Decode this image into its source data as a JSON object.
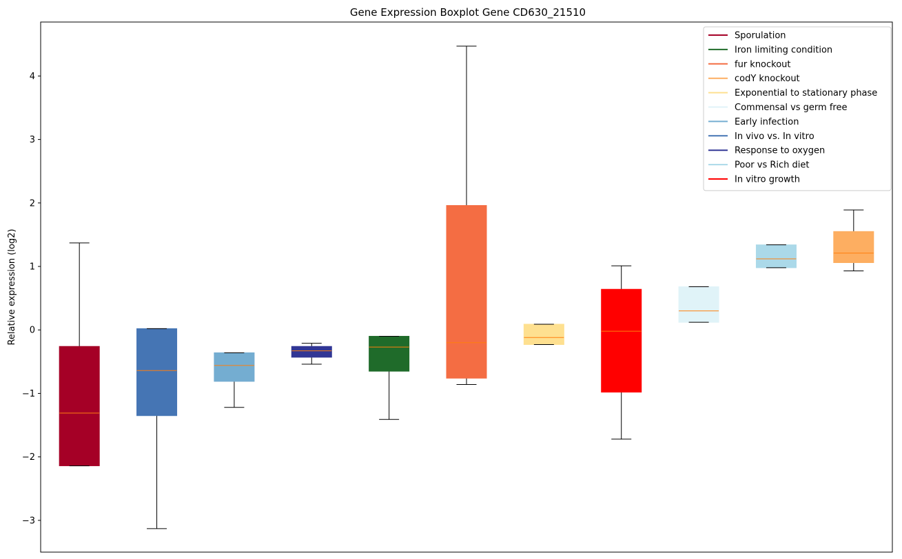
{
  "chart_data": {
    "type": "boxplot",
    "title": "Gene Expression Boxplot Gene CD630_21510",
    "xlabel": "",
    "ylabel": "Relative expression (log2)",
    "ylim": [
      -3.5,
      4.85
    ],
    "yticks": [
      -3,
      -2,
      -1,
      0,
      1,
      2,
      3,
      4
    ],
    "ytick_labels": [
      "−3",
      "−2",
      "−1",
      "0",
      "1",
      "2",
      "3",
      "4"
    ],
    "grid": false,
    "legend_position": "top-right",
    "median_color": "#ff7f0e",
    "whisker_color": "#000000",
    "legend": [
      {
        "label": "Sporulation",
        "color": "#a50026"
      },
      {
        "label": "Iron limiting condition",
        "color": "#1f6b2a"
      },
      {
        "label": "fur knockout",
        "color": "#f46d43"
      },
      {
        "label": "codY knockout",
        "color": "#fdae61"
      },
      {
        "label": "Exponential to stationary phase",
        "color": "#fee090"
      },
      {
        "label": "Commensal vs germ free",
        "color": "#e0f3f8"
      },
      {
        "label": "Early infection",
        "color": "#74add1"
      },
      {
        "label": "In vivo vs. In vitro",
        "color": "#4575b4"
      },
      {
        "label": "Response to oxygen",
        "color": "#313695"
      },
      {
        "label": "Poor vs Rich diet",
        "color": "#abd9e9"
      },
      {
        "label": "In vitro growth",
        "color": "#ff0000"
      }
    ],
    "boxes": [
      {
        "color": "#a50026",
        "whislo": -2.14,
        "q1": -2.14,
        "med": -1.31,
        "q3": -0.26,
        "whishi": 1.37
      },
      {
        "color": "#4575b4",
        "whislo": -3.13,
        "q1": -1.35,
        "med": -0.64,
        "q3": 0.02,
        "whishi": 0.02
      },
      {
        "color": "#74add1",
        "whislo": -1.22,
        "q1": -0.81,
        "med": -0.56,
        "q3": -0.36,
        "whishi": -0.36
      },
      {
        "color": "#313695",
        "whislo": -0.54,
        "q1": -0.43,
        "med": -0.33,
        "q3": -0.26,
        "whishi": -0.21
      },
      {
        "color": "#1f6b2a",
        "whislo": -1.41,
        "q1": -0.65,
        "med": -0.27,
        "q3": -0.1,
        "whishi": -0.1
      },
      {
        "color": "#f46d43",
        "whislo": -0.86,
        "q1": -0.76,
        "med": -0.2,
        "q3": 1.96,
        "whishi": 4.47
      },
      {
        "color": "#fee090",
        "whislo": -0.23,
        "q1": -0.23,
        "med": -0.12,
        "q3": 0.09,
        "whishi": 0.09
      },
      {
        "color": "#ff0000",
        "whislo": -1.72,
        "q1": -0.98,
        "med": -0.02,
        "q3": 0.64,
        "whishi": 1.01
      },
      {
        "color": "#e0f3f8",
        "whislo": 0.12,
        "q1": 0.12,
        "med": 0.3,
        "q3": 0.68,
        "whishi": 0.68
      },
      {
        "color": "#abd9e9",
        "whislo": 0.98,
        "q1": 0.98,
        "med": 1.12,
        "q3": 1.34,
        "whishi": 1.34
      },
      {
        "color": "#fdae61",
        "whislo": 0.93,
        "q1": 1.06,
        "med": 1.21,
        "q3": 1.55,
        "whishi": 1.89
      }
    ]
  }
}
